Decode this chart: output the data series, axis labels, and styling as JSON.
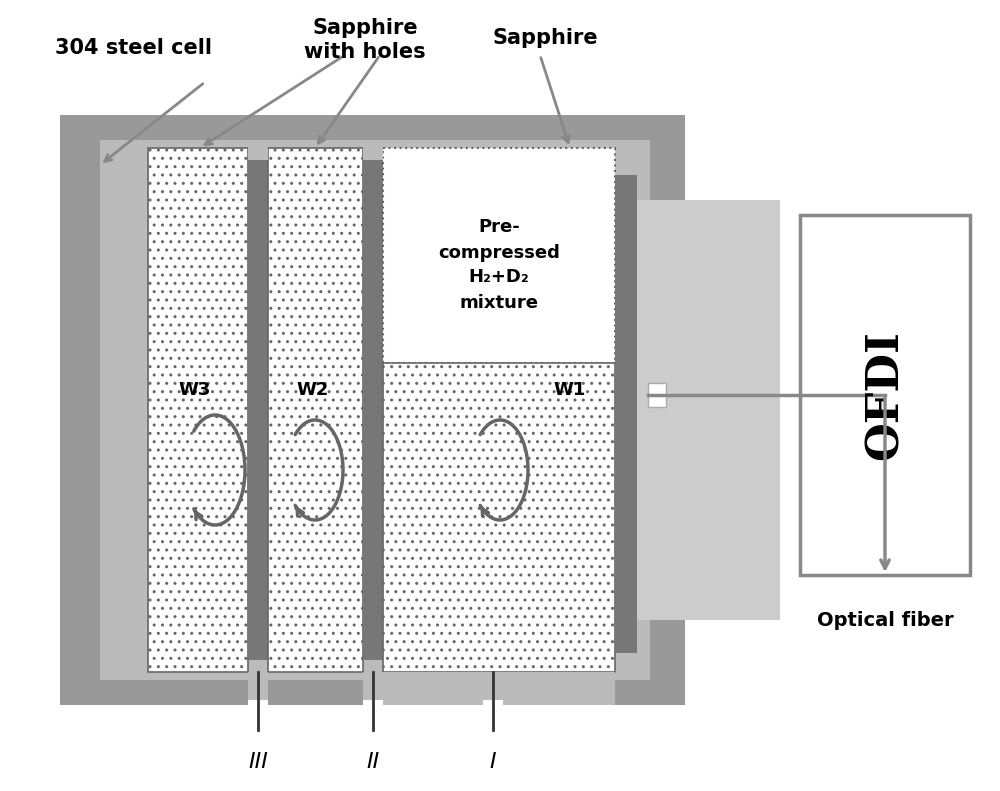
{
  "bg_color": "#ffffff",
  "color_steel_outer": "#999999",
  "color_steel_inner": "#bbbbbb",
  "color_right_panel": "#cccccc",
  "color_dark_spacer": "#777777",
  "color_white": "#ffffff",
  "color_text": "#000000",
  "color_arrow": "#888888",
  "color_hatch_edge": "#666666",
  "label_304": "304 steel cell",
  "label_sapphire_holes_1": "Sapphire",
  "label_sapphire_holes_2": "with holes",
  "label_sapphire": "Sapphire",
  "label_precompressed": "Pre-\ncompressed\nH₂+D₂\nmixture",
  "label_ofdi": "OFDI",
  "label_optical_fiber": "Optical fiber",
  "label_W1": "W1",
  "label_W2": "W2",
  "label_W3": "W3",
  "label_I": "I",
  "label_II": "II",
  "label_III": "III"
}
